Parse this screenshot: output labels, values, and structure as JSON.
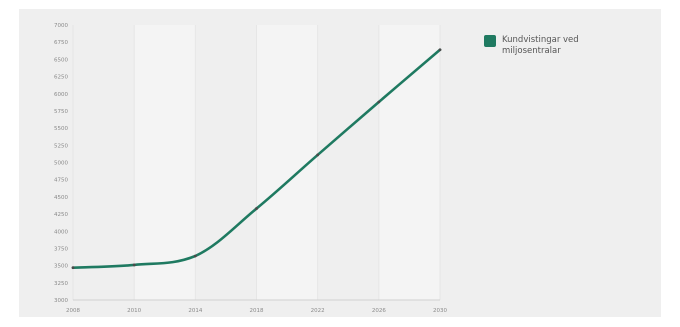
{
  "chart_data": {
    "type": "line",
    "x": [
      "2008",
      "2010",
      "2014",
      "2018",
      "2022",
      "2026",
      "2030"
    ],
    "series": [
      {
        "name": "Kundvistingar ved miljosentralar",
        "color": "#1f7a61",
        "values": [
          3470,
          3510,
          3640,
          4330,
          5110,
          5880,
          6640
        ]
      }
    ],
    "yticks": [
      3000,
      3250,
      3500,
      3750,
      4000,
      4250,
      4500,
      4750,
      5000,
      5250,
      5500,
      5750,
      6000,
      6250,
      6500,
      6750,
      7000
    ],
    "ytick_labels": [
      "3000",
      "3250",
      "3500",
      "3750",
      "4000",
      "4250",
      "4500",
      "4750",
      "5000",
      "5250",
      "5500",
      "5750",
      "6000",
      "6250",
      "6500",
      "6750",
      "7000"
    ],
    "ylim": [
      3000,
      7000
    ],
    "grid": true,
    "legend": "top-right",
    "xlabel": "",
    "ylabel": ""
  }
}
